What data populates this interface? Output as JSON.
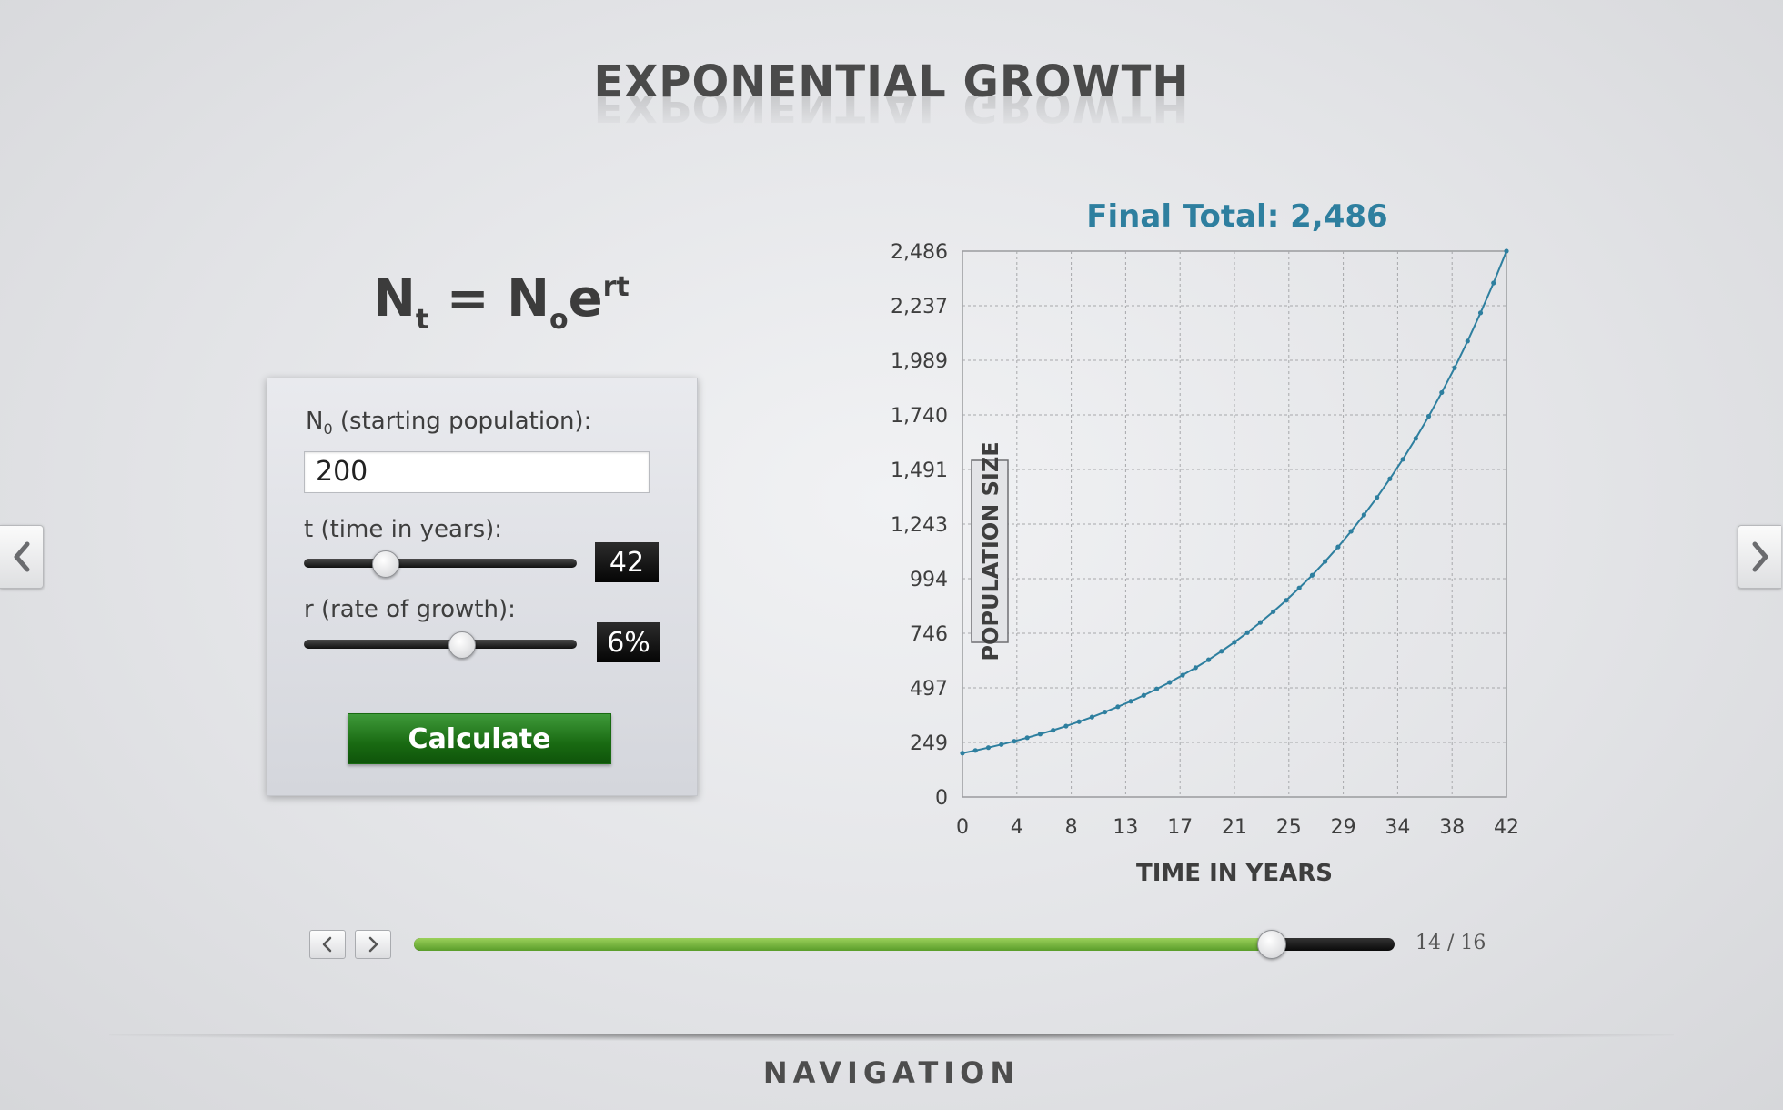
{
  "page": {
    "title": "EXPONENTIAL GROWTH",
    "formula": {
      "lhs_main": "N",
      "lhs_sub": "t",
      "equals": "=",
      "rhs_main": "N",
      "rhs_sub": "o",
      "rhs_base": "e",
      "rhs_sup": "rt"
    }
  },
  "form": {
    "n0_label_main": "N",
    "n0_label_sub": "0",
    "n0_label_rest": " (starting population):",
    "n0_value": "200",
    "t_label": "t (time in years):",
    "t_value": "42",
    "t_slider_fraction": 0.3,
    "r_label": "r (rate of growth):",
    "r_value": "6%",
    "r_slider_fraction": 0.58,
    "calculate_label": "Calculate",
    "calculate_color": "#196a12"
  },
  "chart_data": {
    "type": "line",
    "title": "Final Total: 2,486",
    "xlabel": "TIME IN YEARS",
    "ylabel": "POPULATION SIZE",
    "x_ticks": [
      "0",
      "4",
      "8",
      "13",
      "17",
      "21",
      "25",
      "29",
      "34",
      "38",
      "42"
    ],
    "y_ticks": [
      "0",
      "249",
      "497",
      "746",
      "994",
      "1,243",
      "1,491",
      "1,740",
      "1,989",
      "2,237",
      "2,486"
    ],
    "xlim": [
      0,
      42
    ],
    "ylim": [
      0,
      2486
    ],
    "grid": true,
    "line_color": "#2e7f9f",
    "series": [
      {
        "x": [
          0,
          1,
          2,
          3,
          4,
          5,
          6,
          7,
          8,
          9,
          10,
          11,
          12,
          13,
          14,
          15,
          16,
          17,
          18,
          19,
          20,
          21,
          22,
          23,
          24,
          25,
          26,
          27,
          28,
          29,
          30,
          31,
          32,
          33,
          34,
          35,
          36,
          37,
          38,
          39,
          40,
          41,
          42
        ],
        "values": [
          200,
          212,
          225,
          239,
          254,
          270,
          287,
          304,
          323,
          343,
          364,
          387,
          411,
          436,
          463,
          492,
          522,
          555,
          589,
          625,
          664,
          705,
          749,
          795,
          844,
          896,
          952,
          1010,
          1073,
          1139,
          1210,
          1285,
          1364,
          1449,
          1538,
          1633,
          1734,
          1842,
          1955,
          2076,
          2205,
          2341,
          2486
        ]
      }
    ]
  },
  "navigation": {
    "label": "NAVIGATION",
    "page_count": "14 / 16",
    "progress": 0.875,
    "accent": "#6aae34"
  }
}
